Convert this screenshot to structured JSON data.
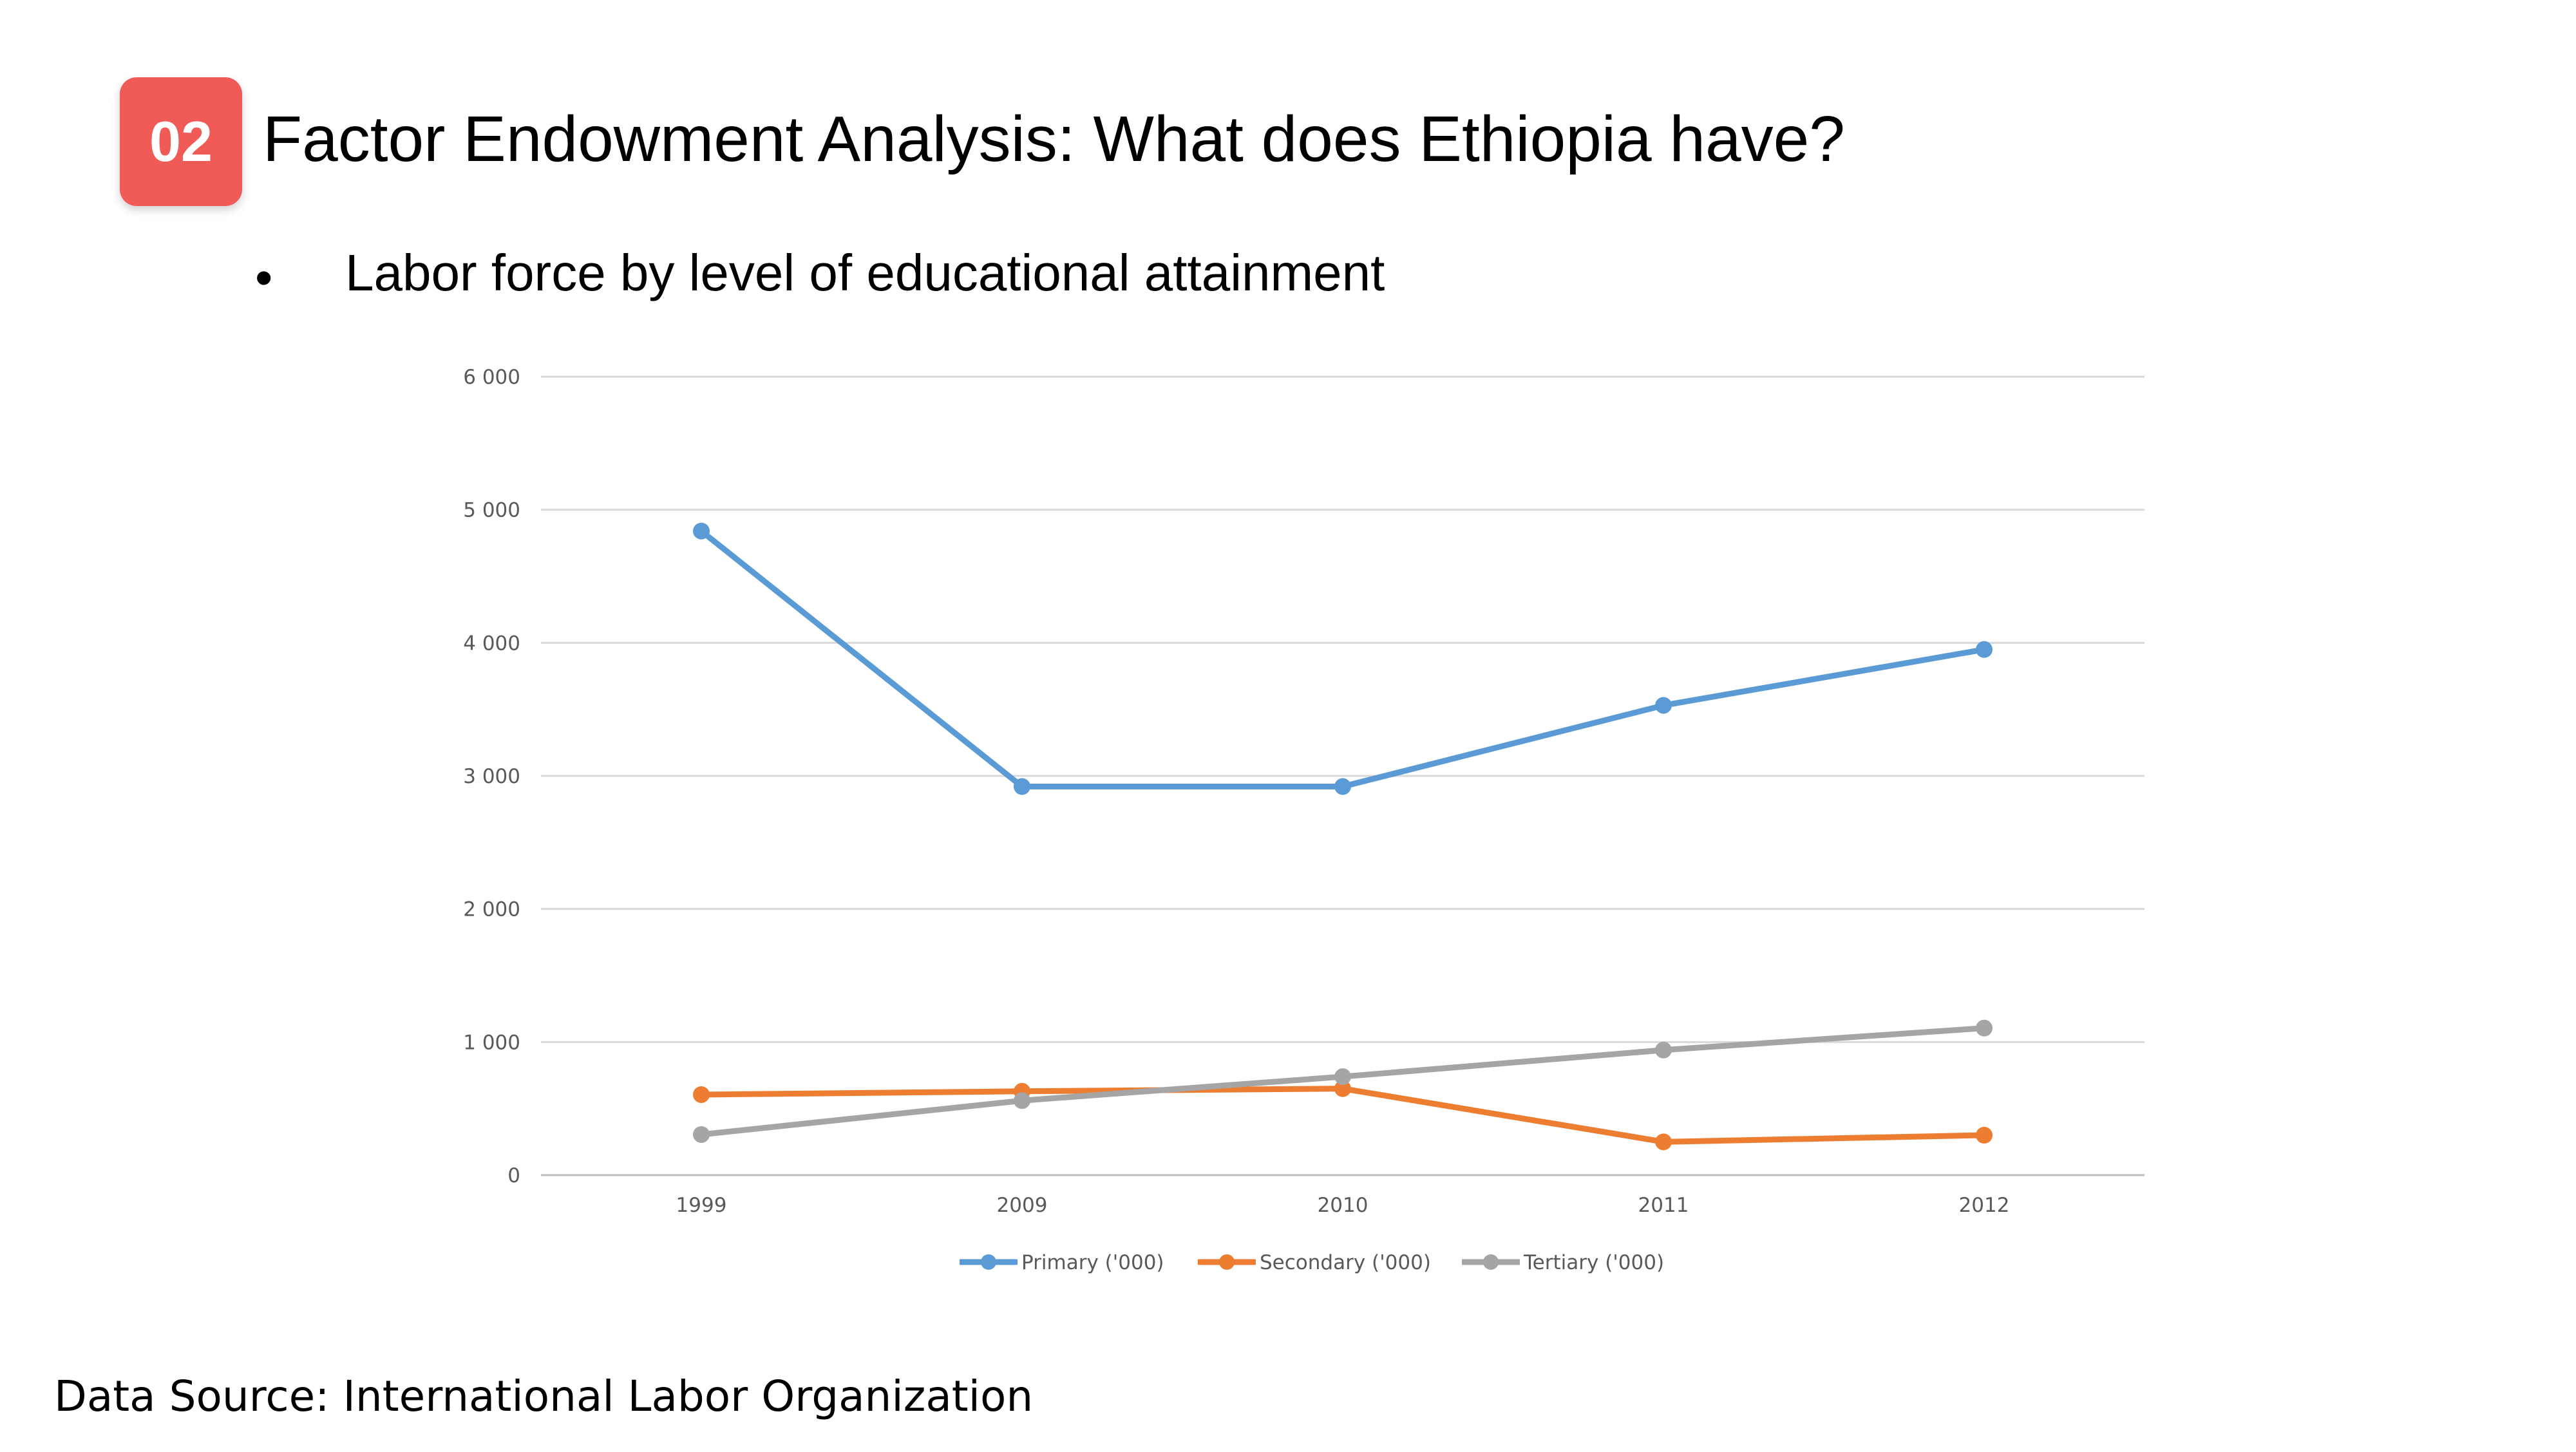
{
  "slide": {
    "badge_number": "02",
    "title": "Factor Endowment Analysis: What does Ethiopia have?",
    "bullet_marker": "•",
    "bullet": "Labor force by level of educational attainment",
    "source": "Data Source: International Labor Organization"
  },
  "chart_data": {
    "type": "line",
    "title": "",
    "xlabel": "",
    "ylabel": "",
    "categories": [
      "1999",
      "2009",
      "2010",
      "2011",
      "2012"
    ],
    "ylim": [
      0,
      6000
    ],
    "yticks": [
      0,
      1000,
      2000,
      3000,
      4000,
      5000,
      6000
    ],
    "ytick_labels": [
      "0",
      "1 000",
      "2 000",
      "3 000",
      "4 000",
      "5 000",
      "6 000"
    ],
    "grid": true,
    "legend_position": "bottom",
    "series": [
      {
        "name": "Primary ('000)",
        "color": "#5b9bd5",
        "values": [
          4840,
          2920,
          2920,
          3530,
          3950
        ]
      },
      {
        "name": "Secondary ('000)",
        "color": "#ed7d31",
        "values": [
          605,
          630,
          650,
          250,
          300
        ]
      },
      {
        "name": "Tertiary ('000)",
        "color": "#a5a5a5",
        "values": [
          305,
          560,
          740,
          940,
          1105
        ]
      }
    ]
  }
}
